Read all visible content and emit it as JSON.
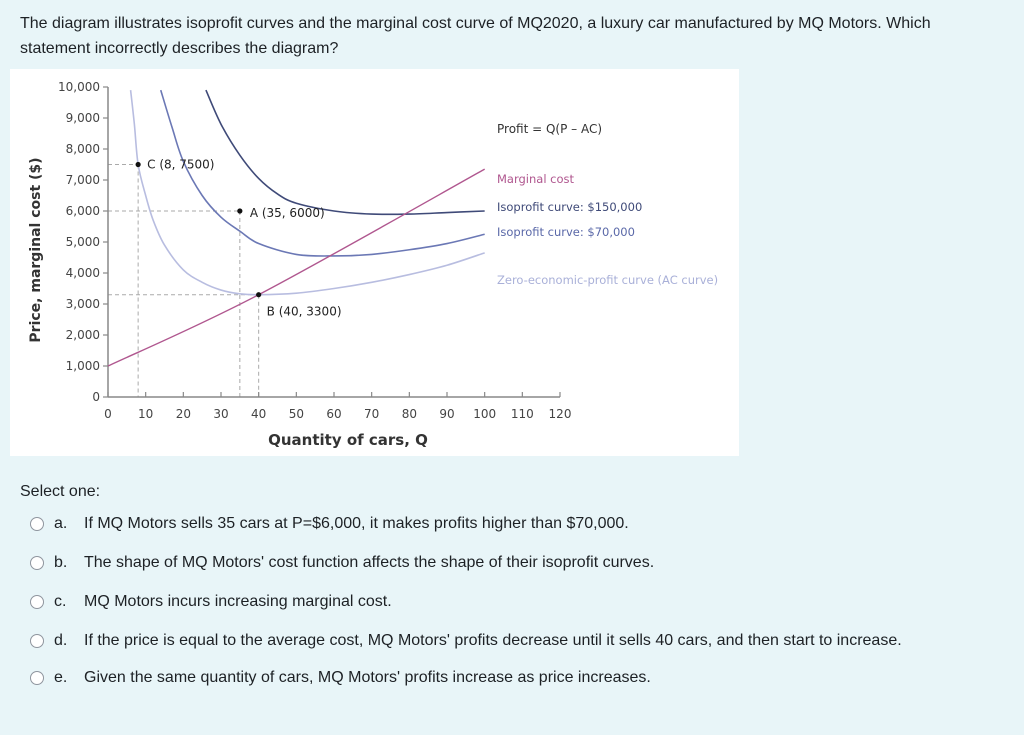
{
  "question": {
    "text": "The diagram illustrates isoprofit curves and the marginal cost curve of MQ2020, a luxury car manufactured by MQ Motors. Which statement incorrectly describes the diagram?"
  },
  "chart_data": {
    "type": "line",
    "title": "",
    "xlabel": "Quantity of cars, Q",
    "ylabel": "Price, marginal cost ($)",
    "xlim": [
      0,
      120
    ],
    "ylim": [
      0,
      10000
    ],
    "x_ticks": [
      "0",
      "10",
      "20",
      "30",
      "40",
      "50",
      "60",
      "70",
      "80",
      "90",
      "100",
      "110",
      "120"
    ],
    "y_ticks": [
      "0",
      "1,000",
      "2,000",
      "3,000",
      "4,000",
      "5,000",
      "6,000",
      "7,000",
      "8,000",
      "9,000",
      "10,000"
    ],
    "formula_label": "Profit = Q(P – AC)",
    "series": [
      {
        "name": "Isoprofit curve: $150,000",
        "color": "#3f4a78",
        "points": [
          [
            26,
            9900
          ],
          [
            30,
            8800
          ],
          [
            35,
            7800
          ],
          [
            40,
            7050
          ],
          [
            45,
            6550
          ],
          [
            50,
            6250
          ],
          [
            60,
            6000
          ],
          [
            70,
            5900
          ],
          [
            80,
            5900
          ],
          [
            90,
            5950
          ],
          [
            100,
            6000
          ]
        ]
      },
      {
        "name": "Isoprofit curve: $70,000",
        "color": "#6b78b5",
        "points": [
          [
            14,
            9900
          ],
          [
            17,
            8700
          ],
          [
            20,
            7600
          ],
          [
            25,
            6500
          ],
          [
            30,
            5800
          ],
          [
            35,
            5350
          ],
          [
            40,
            4950
          ],
          [
            50,
            4600
          ],
          [
            60,
            4550
          ],
          [
            70,
            4600
          ],
          [
            80,
            4750
          ],
          [
            90,
            4950
          ],
          [
            100,
            5250
          ]
        ]
      },
      {
        "name": "Zero-economic-profit curve (AC curve)",
        "color": "#b8bde0",
        "points": [
          [
            6,
            9900
          ],
          [
            7,
            8800
          ],
          [
            8,
            7500
          ],
          [
            10,
            6500
          ],
          [
            12,
            5700
          ],
          [
            15,
            4900
          ],
          [
            20,
            4100
          ],
          [
            25,
            3700
          ],
          [
            30,
            3450
          ],
          [
            35,
            3330
          ],
          [
            40,
            3300
          ],
          [
            50,
            3350
          ],
          [
            60,
            3500
          ],
          [
            70,
            3700
          ],
          [
            80,
            3950
          ],
          [
            90,
            4250
          ],
          [
            100,
            4650
          ]
        ]
      },
      {
        "name": "Marginal cost",
        "color": "#b0578f",
        "points": [
          [
            0,
            1000
          ],
          [
            40,
            3300
          ],
          [
            100,
            7350
          ]
        ]
      }
    ],
    "points_labeled": [
      {
        "label": "C (8, 7500)",
        "x": 8,
        "y": 7500
      },
      {
        "label": "A (35, 6000)",
        "x": 35,
        "y": 6000
      },
      {
        "label": "B (40, 3300)",
        "x": 40,
        "y": 3300
      }
    ],
    "legend_position": "right, inline labels"
  },
  "select_label": "Select one:",
  "options": [
    {
      "letter": "a.",
      "text": "If MQ Motors sells 35 cars at P=$6,000, it makes profits higher than $70,000."
    },
    {
      "letter": "b.",
      "text": "The shape of MQ Motors' cost function affects the shape of their isoprofit curves."
    },
    {
      "letter": "c.",
      "text": "MQ Motors incurs increasing marginal cost."
    },
    {
      "letter": "d.",
      "text": "If the price is equal to the average cost, MQ Motors' profits decrease until it sells 40 cars, and then start to increase."
    },
    {
      "letter": "e.",
      "text": "Given the same quantity of cars, MQ Motors' profits increase as price increases."
    }
  ]
}
